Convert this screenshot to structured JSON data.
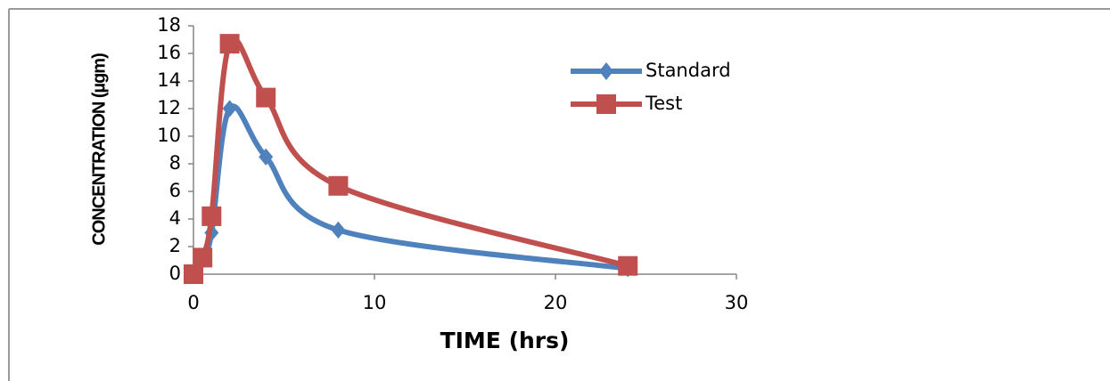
{
  "chart_data": {
    "type": "scatter-smooth",
    "x_label": "TIME (hrs)",
    "y_label": "CONCENTRATION (µgm)",
    "x": [
      0,
      0.5,
      1,
      2,
      4,
      8,
      24
    ],
    "series": [
      {
        "name": "Standard",
        "color": "#4f81bd",
        "marker": "diamond",
        "values": [
          0,
          1.0,
          3.0,
          12.0,
          8.5,
          3.2,
          0.4
        ]
      },
      {
        "name": "Test",
        "color": "#c0504d",
        "marker": "square",
        "values": [
          0,
          1.2,
          4.2,
          16.7,
          12.8,
          6.4,
          0.6
        ]
      }
    ],
    "xlim": [
      0,
      30
    ],
    "xticks": [
      0,
      10,
      20,
      30
    ],
    "ylim": [
      0,
      18
    ],
    "yticks": [
      0,
      2,
      4,
      6,
      8,
      10,
      12,
      14,
      16,
      18
    ],
    "grid": false
  }
}
